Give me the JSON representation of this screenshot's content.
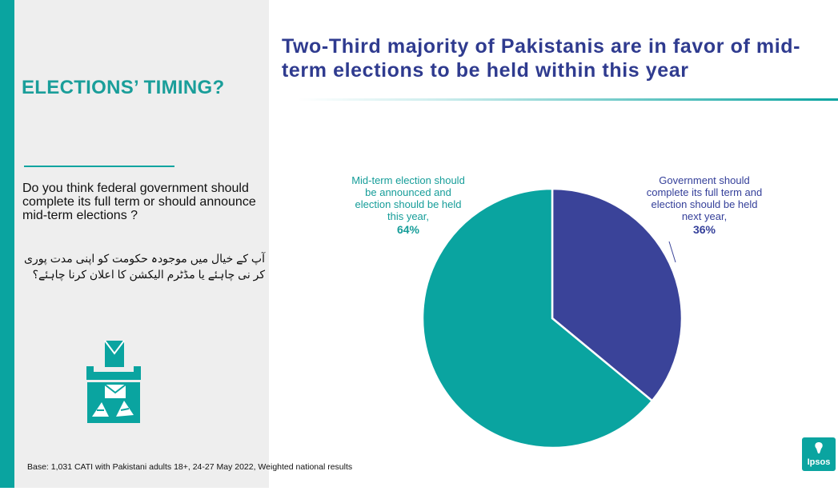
{
  "panel": {
    "title": "ELECTIONS’ TIMING?",
    "question_en": "Do you think federal government should complete its full term or should announce mid-term elections ?",
    "question_ur": "آپ کے خیال میں موجودہ حکومت کو اپنی مدت پوری کر نی چاہئے یا مڈٹرم الیکشن کا اعلان کرنا چاہئے؟",
    "icon": "ballot-box-icon"
  },
  "headline": "Two-Third majority of Pakistanis are in favor of mid-term elections to be held within this year",
  "base_note": "Base: 1,031 CATI with Pakistani adults 18+, 24-27 May 2022, Weighted national results",
  "logo": {
    "text": "Ipsos"
  },
  "colors": {
    "teal": "#0aa4a0",
    "navy": "#3a4399",
    "headline": "#2f3b8f"
  },
  "chart_data": {
    "type": "pie",
    "slices": [
      {
        "label": "Government should complete its full term and election should be held next year,",
        "value": 36,
        "value_label": "36%",
        "color": "#3a4399"
      },
      {
        "label": "Mid-term election should be announced and election should be held this year,",
        "value": 64,
        "value_label": "64%",
        "color": "#0aa4a0"
      }
    ]
  }
}
